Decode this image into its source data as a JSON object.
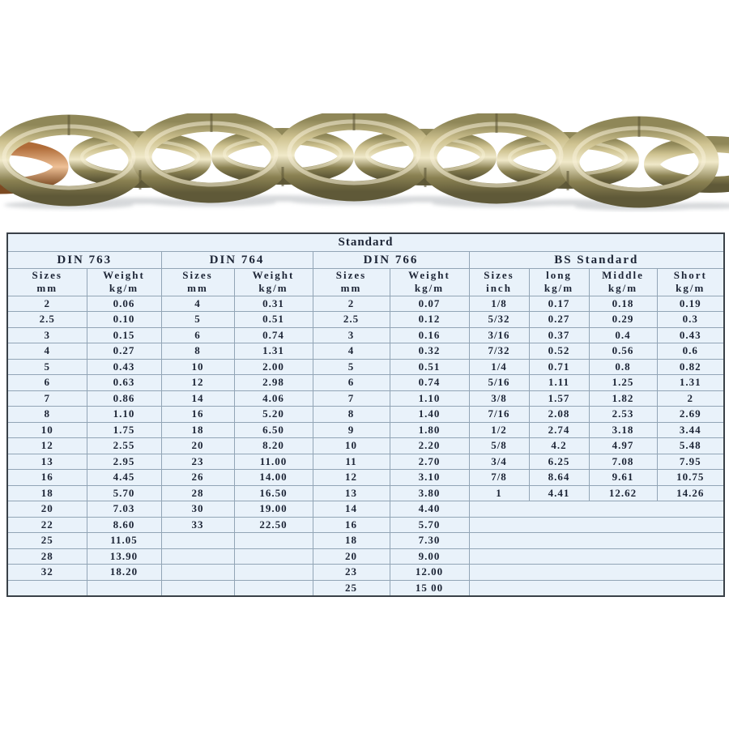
{
  "product_image": {
    "icon": "chain-photo",
    "accent_colors": {
      "gold_light": "#f0e9c9",
      "gold_mid": "#cfc391",
      "gold_dark": "#5f5938",
      "copper": "#b06c38"
    }
  },
  "table": {
    "title": "Standard",
    "body_row_count": 19,
    "colors": {
      "background": "#e9f2fa",
      "grid_line": "#92a5b6",
      "frame": "#3a4148",
      "section_label": "#4b8aab",
      "text": "#1d2536"
    },
    "sections": [
      {
        "name": "DIN 763",
        "columns": [
          [
            "Sizes",
            "mm"
          ],
          [
            "Weight",
            "kg/m"
          ]
        ],
        "rows": [
          [
            "2",
            "0.06"
          ],
          [
            "2.5",
            "0.10"
          ],
          [
            "3",
            "0.15"
          ],
          [
            "4",
            "0.27"
          ],
          [
            "5",
            "0.43"
          ],
          [
            "6",
            "0.63"
          ],
          [
            "7",
            "0.86"
          ],
          [
            "8",
            "1.10"
          ],
          [
            "10",
            "1.75"
          ],
          [
            "12",
            "2.55"
          ],
          [
            "13",
            "2.95"
          ],
          [
            "16",
            "4.45"
          ],
          [
            "18",
            "5.70"
          ],
          [
            "20",
            "7.03"
          ],
          [
            "22",
            "8.60"
          ],
          [
            "25",
            "11.05"
          ],
          [
            "28",
            "13.90"
          ],
          [
            "32",
            "18.20"
          ]
        ]
      },
      {
        "name": "DIN 764",
        "columns": [
          [
            "Sizes",
            "mm"
          ],
          [
            "Weight",
            "kg/m"
          ]
        ],
        "rows": [
          [
            "4",
            "0.31"
          ],
          [
            "5",
            "0.51"
          ],
          [
            "6",
            "0.74"
          ],
          [
            "8",
            "1.31"
          ],
          [
            "10",
            "2.00"
          ],
          [
            "12",
            "2.98"
          ],
          [
            "14",
            "4.06"
          ],
          [
            "16",
            "5.20"
          ],
          [
            "18",
            "6.50"
          ],
          [
            "20",
            "8.20"
          ],
          [
            "23",
            "11.00"
          ],
          [
            "26",
            "14.00"
          ],
          [
            "28",
            "16.50"
          ],
          [
            "30",
            "19.00"
          ],
          [
            "33",
            "22.50"
          ]
        ]
      },
      {
        "name": "DIN 766",
        "columns": [
          [
            "Sizes",
            "mm"
          ],
          [
            "Weight",
            "kg/m"
          ]
        ],
        "rows": [
          [
            "2",
            "0.07"
          ],
          [
            "2.5",
            "0.12"
          ],
          [
            "3",
            "0.16"
          ],
          [
            "4",
            "0.32"
          ],
          [
            "5",
            "0.51"
          ],
          [
            "6",
            "0.74"
          ],
          [
            "7",
            "1.10"
          ],
          [
            "8",
            "1.40"
          ],
          [
            "9",
            "1.80"
          ],
          [
            "10",
            "2.20"
          ],
          [
            "11",
            "2.70"
          ],
          [
            "12",
            "3.10"
          ],
          [
            "13",
            "3.80"
          ],
          [
            "14",
            "4.40"
          ],
          [
            "16",
            "5.70"
          ],
          [
            "18",
            "7.30"
          ],
          [
            "20",
            "9.00"
          ],
          [
            "23",
            "12.00"
          ],
          [
            "25",
            "15 00"
          ]
        ]
      },
      {
        "name": "BS Standard",
        "columns": [
          [
            "Sizes",
            "inch"
          ],
          [
            "long",
            "kg/m"
          ],
          [
            "Middle",
            "kg/m"
          ],
          [
            "Short",
            "kg/m"
          ]
        ],
        "merged_empty_rows": true,
        "rows": [
          [
            "1/8",
            "0.17",
            "0.18",
            "0.19"
          ],
          [
            "5/32",
            "0.27",
            "0.29",
            "0.3"
          ],
          [
            "3/16",
            "0.37",
            "0.4",
            "0.43"
          ],
          [
            "7/32",
            "0.52",
            "0.56",
            "0.6"
          ],
          [
            "1/4",
            "0.71",
            "0.8",
            "0.82"
          ],
          [
            "5/16",
            "1.11",
            "1.25",
            "1.31"
          ],
          [
            "3/8",
            "1.57",
            "1.82",
            "2"
          ],
          [
            "7/16",
            "2.08",
            "2.53",
            "2.69"
          ],
          [
            "1/2",
            "2.74",
            "3.18",
            "3.44"
          ],
          [
            "5/8",
            "4.2",
            "4.97",
            "5.48"
          ],
          [
            "3/4",
            "6.25",
            "7.08",
            "7.95"
          ],
          [
            "7/8",
            "8.64",
            "9.61",
            "10.75"
          ],
          [
            "1",
            "4.41",
            "12.62",
            "14.26"
          ]
        ]
      }
    ]
  }
}
